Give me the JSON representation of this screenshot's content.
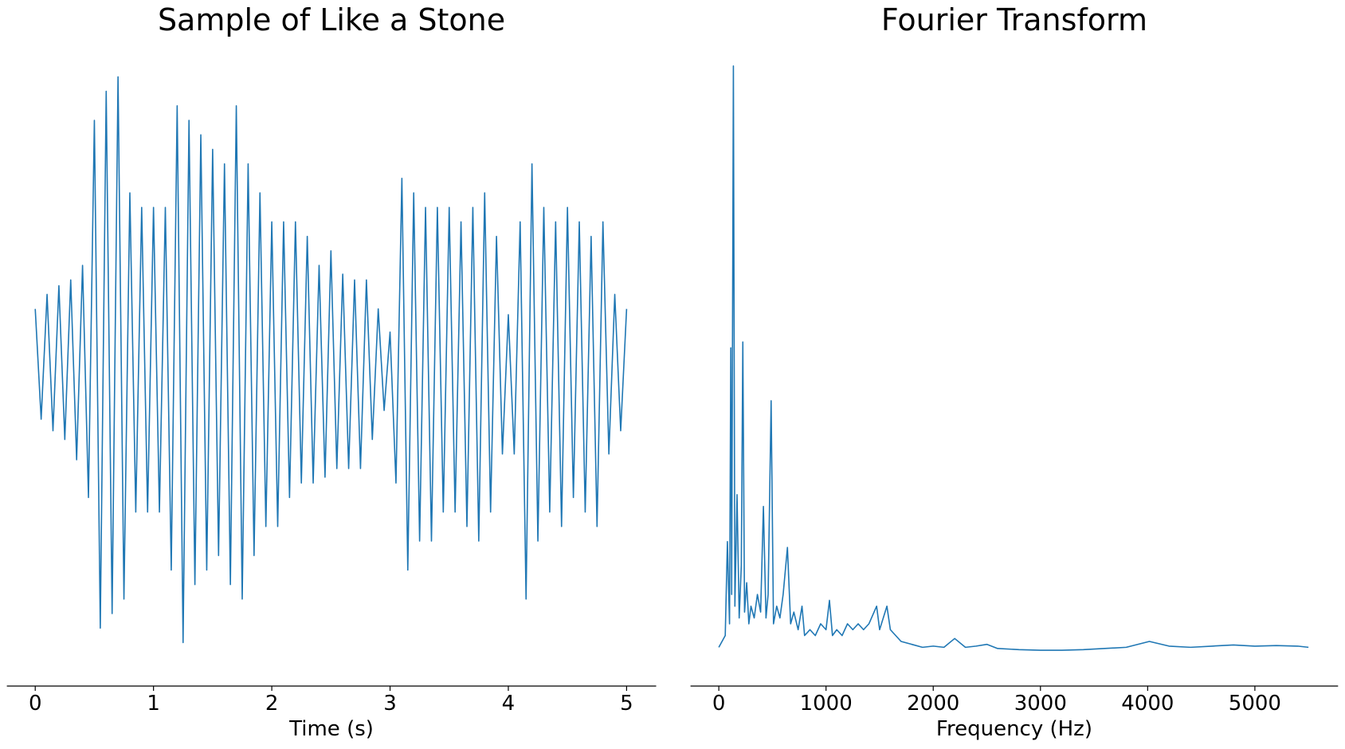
{
  "chart_data": [
    {
      "type": "line",
      "title": "Sample of Like a Stone",
      "xlabel": "Time (s)",
      "color": "#1f77b4",
      "xlim": [
        -0.24,
        5.25
      ],
      "ylim": [
        -1.1,
        1.1
      ],
      "xticks": [
        0,
        1,
        2,
        3,
        4,
        5
      ],
      "x": [
        0,
        0.05,
        0.1,
        0.15,
        0.2,
        0.25,
        0.3,
        0.35,
        0.4,
        0.45,
        0.5,
        0.55,
        0.6,
        0.65,
        0.7,
        0.75,
        0.8,
        0.85,
        0.9,
        0.95,
        1.0,
        1.05,
        1.1,
        1.15,
        1.2,
        1.25,
        1.3,
        1.35,
        1.4,
        1.45,
        1.5,
        1.55,
        1.6,
        1.65,
        1.7,
        1.75,
        1.8,
        1.85,
        1.9,
        1.95,
        2.0,
        2.05,
        2.1,
        2.15,
        2.2,
        2.25,
        2.3,
        2.35,
        2.4,
        2.45,
        2.5,
        2.55,
        2.6,
        2.65,
        2.7,
        2.75,
        2.8,
        2.85,
        2.9,
        2.95,
        3.0,
        3.05,
        3.1,
        3.15,
        3.2,
        3.25,
        3.3,
        3.35,
        3.4,
        3.45,
        3.5,
        3.55,
        3.6,
        3.65,
        3.7,
        3.75,
        3.8,
        3.85,
        3.9,
        3.95,
        4.0,
        4.05,
        4.1,
        4.15,
        4.2,
        4.25,
        4.3,
        4.35,
        4.4,
        4.45,
        4.5,
        4.55,
        4.6,
        4.65,
        4.7,
        4.75,
        4.8,
        4.85,
        4.9,
        4.95,
        5.0
      ],
      "values": [
        0.2,
        -0.18,
        0.25,
        -0.22,
        0.28,
        -0.25,
        0.3,
        -0.32,
        0.35,
        -0.45,
        0.85,
        -0.9,
        0.95,
        -0.85,
        1.0,
        -0.8,
        0.6,
        -0.5,
        0.55,
        -0.5,
        0.55,
        -0.5,
        0.55,
        -0.7,
        0.9,
        -0.95,
        0.85,
        -0.75,
        0.8,
        -0.7,
        0.75,
        -0.65,
        0.7,
        -0.75,
        0.9,
        -0.8,
        0.7,
        -0.65,
        0.6,
        -0.55,
        0.5,
        -0.55,
        0.5,
        -0.45,
        0.5,
        -0.4,
        0.45,
        -0.4,
        0.35,
        -0.38,
        0.4,
        -0.35,
        0.32,
        -0.35,
        0.3,
        -0.35,
        0.3,
        -0.25,
        0.2,
        -0.15,
        0.12,
        -0.4,
        0.65,
        -0.7,
        0.6,
        -0.6,
        0.55,
        -0.6,
        0.55,
        -0.5,
        0.55,
        -0.5,
        0.5,
        -0.55,
        0.55,
        -0.6,
        0.6,
        -0.5,
        0.45,
        -0.3,
        0.18,
        -0.3,
        0.5,
        -0.8,
        0.7,
        -0.6,
        0.55,
        -0.5,
        0.5,
        -0.55,
        0.55,
        -0.45,
        0.5,
        -0.5,
        0.45,
        -0.55,
        0.5,
        -0.3,
        0.25,
        -0.22,
        0.2
      ]
    },
    {
      "type": "line",
      "title": "Fourier Transform",
      "xlabel": "Frequency (Hz)",
      "color": "#1f77b4",
      "xlim": [
        -264,
        5776
      ],
      "ylim": [
        -0.056,
        1.031
      ],
      "xticks": [
        0,
        1000,
        2000,
        3000,
        4000,
        5000
      ],
      "x": [
        0,
        60,
        80,
        100,
        112,
        120,
        136,
        150,
        170,
        190,
        210,
        224,
        240,
        260,
        280,
        300,
        330,
        360,
        390,
        416,
        440,
        460,
        488,
        510,
        540,
        570,
        600,
        640,
        670,
        700,
        740,
        776,
        800,
        850,
        900,
        950,
        1000,
        1032,
        1060,
        1100,
        1150,
        1200,
        1250,
        1300,
        1350,
        1400,
        1472,
        1500,
        1568,
        1600,
        1650,
        1700,
        1800,
        1900,
        2000,
        2100,
        2200,
        2300,
        2400,
        2500,
        2600,
        2800,
        3000,
        3200,
        3400,
        3600,
        3800,
        4016,
        4200,
        4400,
        4600,
        4800,
        5000,
        5200,
        5400,
        5500
      ],
      "values": [
        0.01,
        0.03,
        0.19,
        0.05,
        0.52,
        0.1,
        1.0,
        0.08,
        0.27,
        0.06,
        0.15,
        0.53,
        0.07,
        0.12,
        0.05,
        0.08,
        0.06,
        0.1,
        0.07,
        0.25,
        0.06,
        0.1,
        0.43,
        0.05,
        0.08,
        0.06,
        0.1,
        0.18,
        0.05,
        0.07,
        0.04,
        0.08,
        0.03,
        0.04,
        0.03,
        0.05,
        0.04,
        0.09,
        0.03,
        0.04,
        0.03,
        0.05,
        0.04,
        0.05,
        0.04,
        0.05,
        0.08,
        0.04,
        0.08,
        0.04,
        0.03,
        0.02,
        0.015,
        0.01,
        0.012,
        0.01,
        0.025,
        0.01,
        0.012,
        0.015,
        0.008,
        0.006,
        0.005,
        0.005,
        0.006,
        0.008,
        0.01,
        0.02,
        0.012,
        0.01,
        0.012,
        0.014,
        0.012,
        0.013,
        0.012,
        0.01
      ]
    }
  ]
}
